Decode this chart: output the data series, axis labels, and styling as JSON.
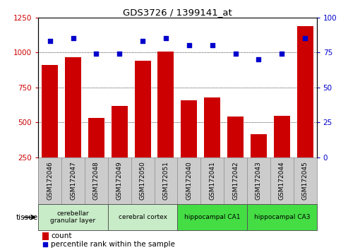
{
  "title": "GDS3726 / 1399141_at",
  "samples": [
    "GSM172046",
    "GSM172047",
    "GSM172048",
    "GSM172049",
    "GSM172050",
    "GSM172051",
    "GSM172040",
    "GSM172041",
    "GSM172042",
    "GSM172043",
    "GSM172044",
    "GSM172045"
  ],
  "counts": [
    910,
    965,
    530,
    620,
    940,
    1005,
    660,
    680,
    540,
    415,
    545,
    1190
  ],
  "percentiles": [
    83,
    85,
    74,
    74,
    83,
    85,
    80,
    80,
    74,
    70,
    74,
    85
  ],
  "ylim_left": [
    250,
    1250
  ],
  "ylim_right": [
    0,
    100
  ],
  "yticks_left": [
    250,
    500,
    750,
    1000,
    1250
  ],
  "yticks_right": [
    0,
    25,
    50,
    75,
    100
  ],
  "bar_color": "#cc0000",
  "dot_color": "#0000cc",
  "tissue_groups": [
    {
      "label": "cerebellar\ngranular layer",
      "start": 0,
      "end": 3,
      "color": "#c8ecc8"
    },
    {
      "label": "cerebral cortex",
      "start": 3,
      "end": 6,
      "color": "#c8ecc8"
    },
    {
      "label": "hippocampal CA1",
      "start": 6,
      "end": 9,
      "color": "#44dd44"
    },
    {
      "label": "hippocampal CA3",
      "start": 9,
      "end": 12,
      "color": "#44dd44"
    }
  ],
  "legend_count_color": "#cc0000",
  "legend_pct_color": "#0000cc",
  "tissue_label": "tissue",
  "dotted_line_color": "#000000",
  "background_color": "#ffffff",
  "tick_area_color": "#cccccc"
}
